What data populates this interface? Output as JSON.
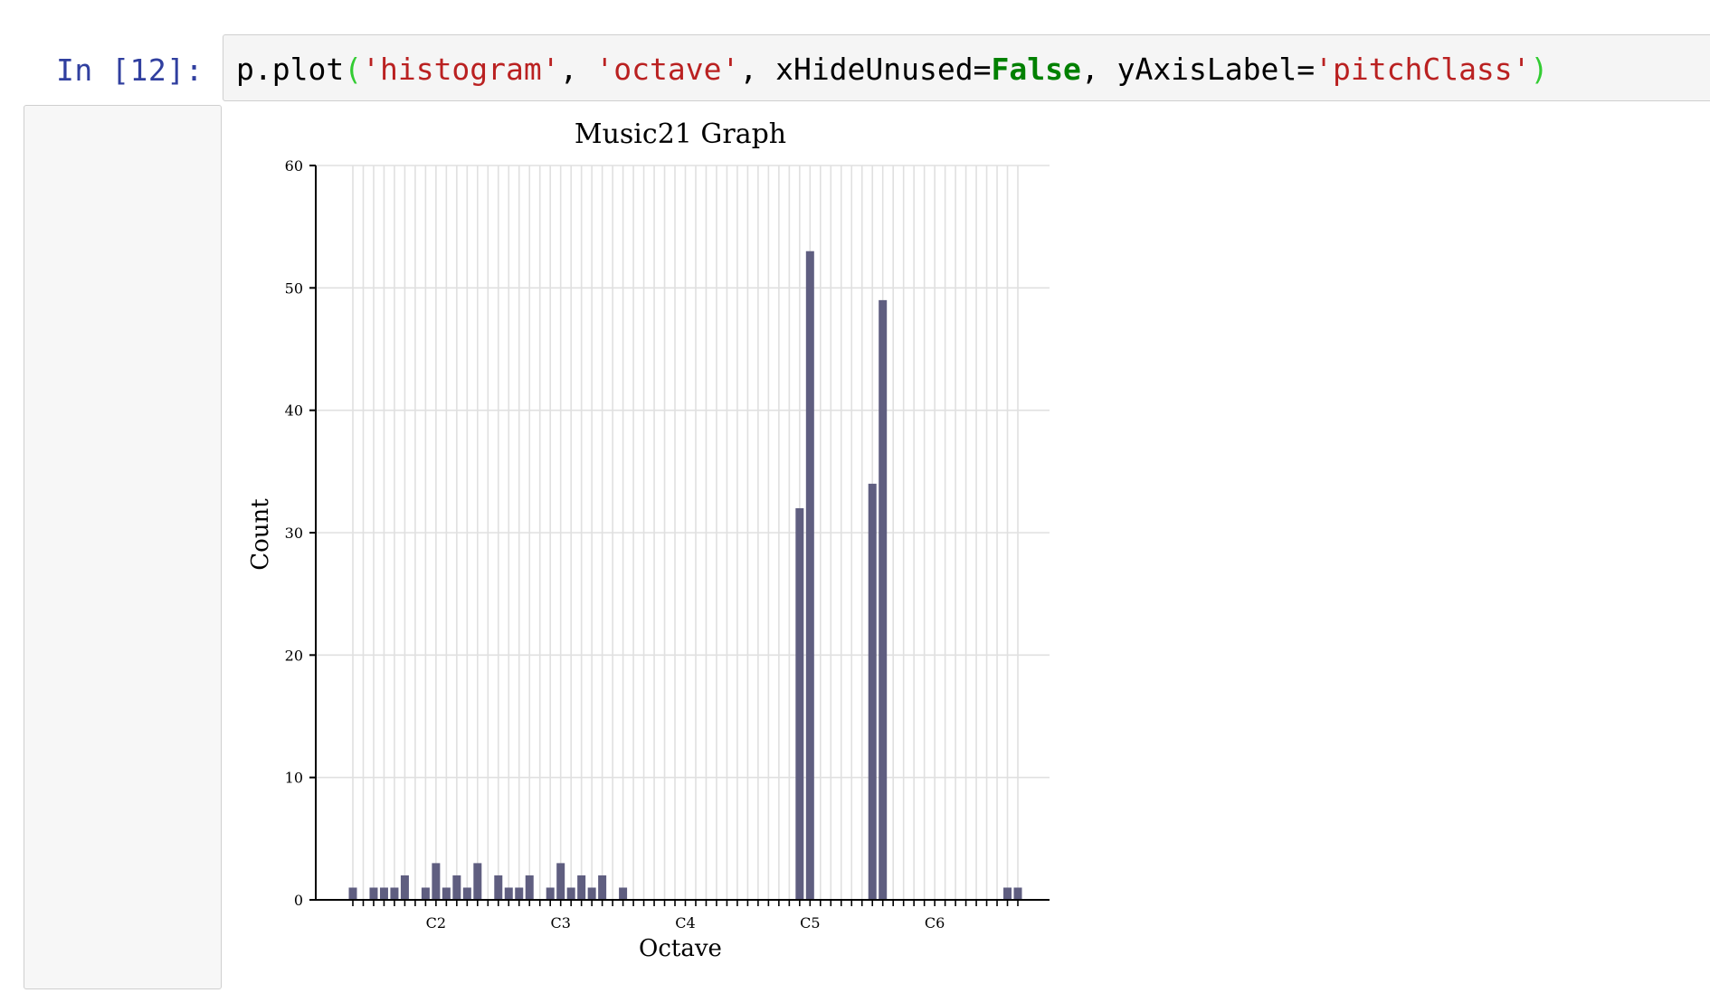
{
  "cell": {
    "prompt": "In [12]:",
    "code_tokens": [
      {
        "text": "p.plot",
        "cls": ""
      },
      {
        "text": "(",
        "cls": "tok-paren"
      },
      {
        "text": "'histogram'",
        "cls": "tok-str"
      },
      {
        "text": ", ",
        "cls": ""
      },
      {
        "text": "'octave'",
        "cls": "tok-str"
      },
      {
        "text": ", xHideUnused=",
        "cls": ""
      },
      {
        "text": "False",
        "cls": "tok-kw"
      },
      {
        "text": ", yAxisLabel=",
        "cls": ""
      },
      {
        "text": "'pitchClass'",
        "cls": "tok-str"
      },
      {
        "text": ")",
        "cls": "tok-paren"
      }
    ]
  },
  "chart_data": {
    "type": "bar",
    "title": "Music21 Graph",
    "xlabel": "Octave",
    "ylabel": "Count",
    "ylim": [
      0,
      60
    ],
    "yticks": [
      0,
      10,
      20,
      30,
      40,
      50,
      60
    ],
    "grid": true,
    "bar_color": "#5f5e80",
    "slot_count": 65,
    "x_tick_labels": [
      {
        "slot": 8,
        "label": "C2"
      },
      {
        "slot": 20,
        "label": "C3"
      },
      {
        "slot": 32,
        "label": "C4"
      },
      {
        "slot": 44,
        "label": "C5"
      },
      {
        "slot": 56,
        "label": "C6"
      }
    ],
    "values": [
      1,
      0,
      1,
      1,
      1,
      2,
      0,
      1,
      3,
      1,
      2,
      1,
      3,
      0,
      2,
      1,
      1,
      2,
      0,
      1,
      3,
      1,
      2,
      1,
      2,
      0,
      1,
      0,
      0,
      0,
      0,
      0,
      0,
      0,
      0,
      0,
      0,
      0,
      0,
      0,
      0,
      0,
      0,
      32,
      53,
      0,
      0,
      0,
      0,
      0,
      34,
      49,
      0,
      0,
      0,
      0,
      0,
      0,
      0,
      0,
      0,
      0,
      0,
      1,
      1
    ]
  }
}
